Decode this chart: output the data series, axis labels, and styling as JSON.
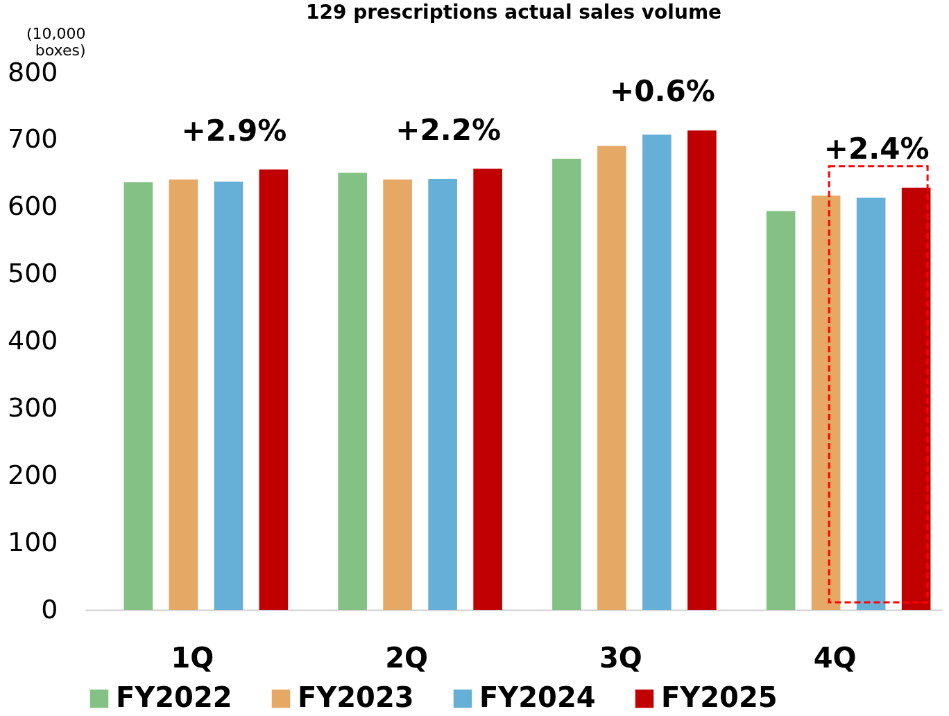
{
  "chart_data": {
    "type": "bar",
    "title": "129 prescriptions actual sales volume",
    "ylabel": "(10,000 boxes)",
    "categories": [
      "1Q",
      "2Q",
      "3Q",
      "4Q"
    ],
    "series": [
      {
        "name": "FY2022",
        "color": "#84c184",
        "values": [
          637,
          651,
          672,
          594
        ]
      },
      {
        "name": "FY2023",
        "color": "#e6a865",
        "values": [
          641,
          641,
          691,
          617
        ]
      },
      {
        "name": "FY2024",
        "color": "#66afd6",
        "values": [
          638,
          642,
          708,
          614
        ]
      },
      {
        "name": "FY2025",
        "color": "#c00000",
        "values": [
          656,
          657,
          714,
          629
        ]
      }
    ],
    "ylim": [
      0,
      800
    ],
    "yticks": [
      0,
      100,
      200,
      300,
      400,
      500,
      600,
      700,
      800
    ],
    "grid": false,
    "legend": "bottom",
    "annotations": [
      "+2.9%",
      "+2.2%",
      "+0.6%",
      "+2.4%"
    ]
  }
}
